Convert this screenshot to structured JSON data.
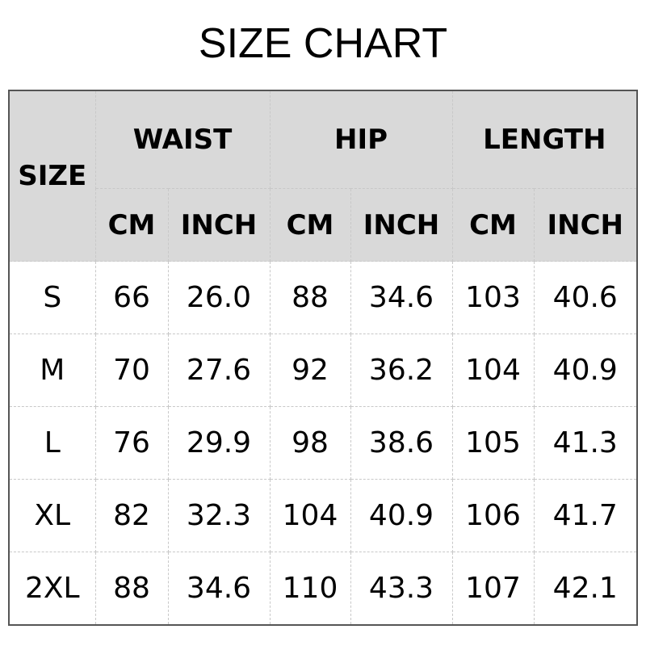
{
  "title": "SIZE CHART",
  "header": {
    "size": "SIZE",
    "groups": [
      "WAIST",
      "HIP",
      "LENGTH"
    ],
    "units": [
      "CM",
      "INCH",
      "CM",
      "INCH",
      "CM",
      "INCH"
    ]
  },
  "rows": [
    [
      "S",
      "66",
      "26.0",
      "88",
      "34.6",
      "103",
      "40.6"
    ],
    [
      "M",
      "70",
      "27.6",
      "92",
      "36.2",
      "104",
      "40.9"
    ],
    [
      "L",
      "76",
      "29.9",
      "98",
      "38.6",
      "105",
      "41.3"
    ],
    [
      "XL",
      "82",
      "32.3",
      "104",
      "40.9",
      "106",
      "41.7"
    ],
    [
      "2XL",
      "88",
      "34.6",
      "110",
      "43.3",
      "107",
      "42.1"
    ]
  ]
}
